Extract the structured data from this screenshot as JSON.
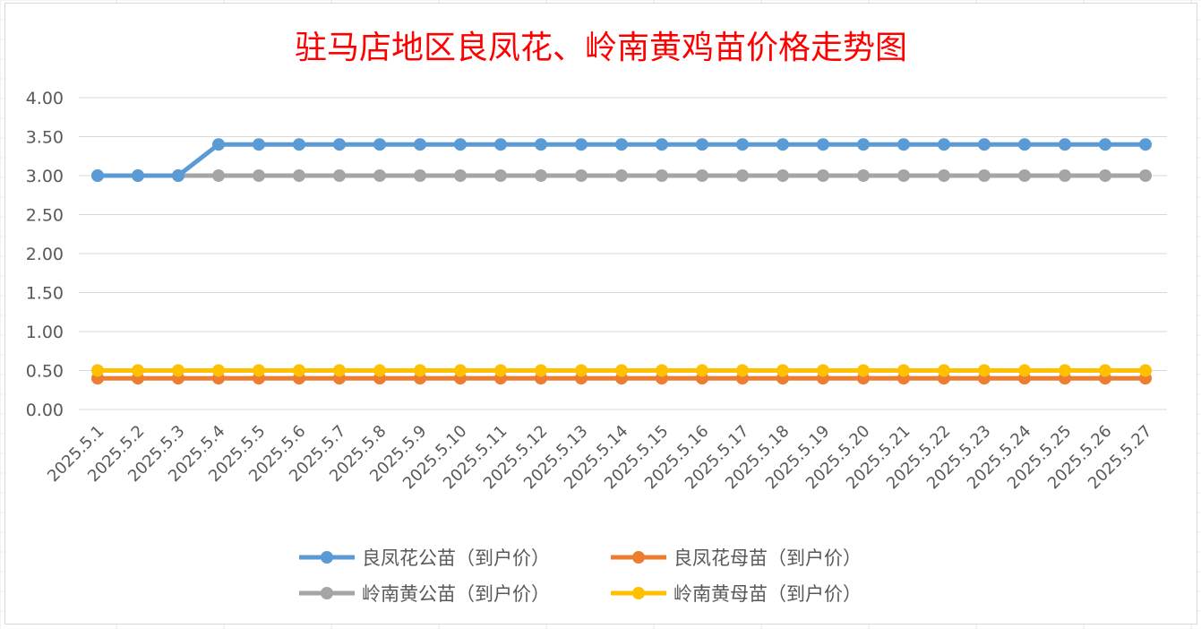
{
  "chart_data": {
    "type": "line",
    "title": "驻马店地区良凤花、岭南黄鸡苗价格走势图",
    "categories": [
      "2025.5.1",
      "2025.5.2",
      "2025.5.3",
      "2025.5.4",
      "2025.5.5",
      "2025.5.6",
      "2025.5.7",
      "2025.5.8",
      "2025.5.9",
      "2025.5.10",
      "2025.5.11",
      "2025.5.12",
      "2025.5.13",
      "2025.5.14",
      "2025.5.15",
      "2025.5.16",
      "2025.5.17",
      "2025.5.18",
      "2025.5.19",
      "2025.5.20",
      "2025.5.21",
      "2025.5.22",
      "2025.5.23",
      "2025.5.24",
      "2025.5.25",
      "2025.5.26",
      "2025.5.27"
    ],
    "y_ticks": [
      "0.00",
      "0.50",
      "1.00",
      "1.50",
      "2.00",
      "2.50",
      "3.00",
      "3.50",
      "4.00"
    ],
    "ylim": [
      0,
      4
    ],
    "grid": true,
    "legend_position": "bottom",
    "series": [
      {
        "name": "良凤花公苗（到户价）",
        "color": "#5b9bd5",
        "values": [
          3.0,
          3.0,
          3.0,
          3.4,
          3.4,
          3.4,
          3.4,
          3.4,
          3.4,
          3.4,
          3.4,
          3.4,
          3.4,
          3.4,
          3.4,
          3.4,
          3.4,
          3.4,
          3.4,
          3.4,
          3.4,
          3.4,
          3.4,
          3.4,
          3.4,
          3.4,
          3.4
        ]
      },
      {
        "name": "良凤花母苗（到户价）",
        "color": "#ed7d31",
        "values": [
          0.4,
          0.4,
          0.4,
          0.4,
          0.4,
          0.4,
          0.4,
          0.4,
          0.4,
          0.4,
          0.4,
          0.4,
          0.4,
          0.4,
          0.4,
          0.4,
          0.4,
          0.4,
          0.4,
          0.4,
          0.4,
          0.4,
          0.4,
          0.4,
          0.4,
          0.4,
          0.4
        ]
      },
      {
        "name": "岭南黄公苗（到户价）",
        "color": "#a5a5a5",
        "values": [
          3.0,
          3.0,
          3.0,
          3.0,
          3.0,
          3.0,
          3.0,
          3.0,
          3.0,
          3.0,
          3.0,
          3.0,
          3.0,
          3.0,
          3.0,
          3.0,
          3.0,
          3.0,
          3.0,
          3.0,
          3.0,
          3.0,
          3.0,
          3.0,
          3.0,
          3.0,
          3.0
        ]
      },
      {
        "name": "岭南黄母苗（到户价）",
        "color": "#ffc000",
        "values": [
          0.5,
          0.5,
          0.5,
          0.5,
          0.5,
          0.5,
          0.5,
          0.5,
          0.5,
          0.5,
          0.5,
          0.5,
          0.5,
          0.5,
          0.5,
          0.5,
          0.5,
          0.5,
          0.5,
          0.5,
          0.5,
          0.5,
          0.5,
          0.5,
          0.5,
          0.5,
          0.5
        ]
      }
    ]
  }
}
